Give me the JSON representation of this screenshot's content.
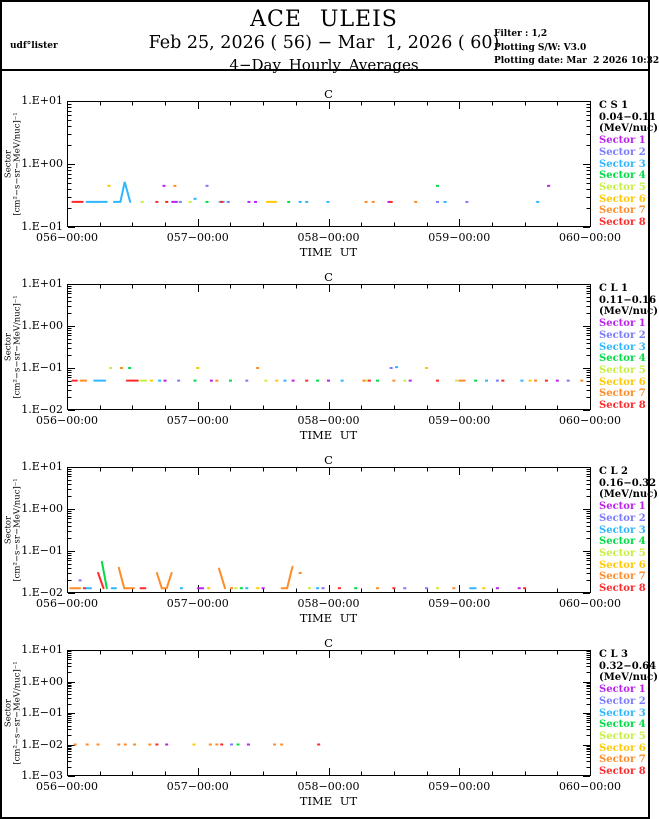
{
  "header": {
    "title": "ACE ULEIS",
    "date_range": "Feb 25, 2026 ( 56) − Mar  1, 2026 ( 60)",
    "subtitle": "4−Day Hourly Averages",
    "left_note": "udf°lister",
    "right_notes": [
      "Filter : 1,2",
      "Plotting S/W: V3.0",
      "Plotting date: Mar  2 2026 10:32"
    ]
  },
  "xaxis": {
    "tick_labels": [
      "056−00:00",
      "057−00:00",
      "058−00:00",
      "059−00:00",
      "060−00:00"
    ],
    "label": "TIME UT",
    "hours_range": [
      0,
      96
    ],
    "major_tick_hours": 24,
    "minor_tick_hours": 6
  },
  "yaxis_label_lines": [
    "Sector",
    "[cm²−s−sr−MeV/nuc]⁻¹"
  ],
  "sectors": [
    {
      "name": "Sector 1",
      "color": "#bb22ee"
    },
    {
      "name": "Sector 2",
      "color": "#7b7bff"
    },
    {
      "name": "Sector 3",
      "color": "#2eb6ff"
    },
    {
      "name": "Sector 4",
      "color": "#00dd44"
    },
    {
      "name": "Sector 5",
      "color": "#c8ee44"
    },
    {
      "name": "Sector 6",
      "color": "#ffc800"
    },
    {
      "name": "Sector 7",
      "color": "#ff8c28"
    },
    {
      "name": "Sector 8",
      "color": "#ff2a2a"
    }
  ],
  "chart_data": [
    {
      "type": "scatter",
      "panel_title": "C",
      "legend_lines": [
        "C S 1",
        "0.04−0.11",
        "(MeV/nuc)"
      ],
      "ylog_range": [
        -1,
        1
      ],
      "ytick_labels": [
        "1.E+01",
        "1.E+00",
        "1.E−01"
      ],
      "series": [
        {
          "sector": 1,
          "points": [
            [
              17.8,
              0.45
            ],
            [
              19.3,
              0.25
            ],
            [
              20.2,
              0.25
            ],
            [
              33.4,
              0.25
            ],
            [
              34.6,
              0.25
            ],
            [
              59.1,
              0.25
            ],
            [
              88.4,
              0.45
            ]
          ]
        },
        {
          "sector": 2,
          "points": [
            [
              20.8,
              0.25
            ],
            [
              25.7,
              0.45
            ],
            [
              29.6,
              0.25
            ],
            [
              68,
              0.25
            ],
            [
              73.4,
              0.25
            ]
          ]
        },
        {
          "sector": 3,
          "points": [
            [
              3.6,
              0.25
            ],
            [
              4.6,
              0.25
            ],
            [
              5.6,
              0.25
            ],
            [
              6.6,
              0.25
            ],
            [
              7.3,
              0.25
            ],
            [
              8.6,
              0.25
            ],
            [
              9.3,
              0.25
            ],
            [
              9.8,
              0.25
            ],
            [
              10.6,
              0.52
            ],
            [
              11.6,
              0.25
            ],
            [
              23.5,
              0.28
            ],
            [
              28,
              0.25
            ],
            [
              28.8,
              0.25
            ],
            [
              42.8,
              0.25
            ],
            [
              44,
              0.25
            ],
            [
              47.9,
              0.25
            ],
            [
              69.4,
              0.25
            ],
            [
              86.4,
              0.25
            ]
          ]
        },
        {
          "sector": 4,
          "points": [
            [
              25.7,
              0.25
            ],
            [
              40.7,
              0.25
            ],
            [
              68,
              0.45
            ]
          ]
        },
        {
          "sector": 5,
          "points": [
            [
              13.8,
              0.25
            ],
            [
              22.6,
              0.25
            ]
          ]
        },
        {
          "sector": 6,
          "points": [
            [
              7.7,
              0.45
            ],
            [
              36.7,
              0.25
            ],
            [
              37.6,
              0.25
            ],
            [
              38.4,
              0.25
            ]
          ]
        },
        {
          "sector": 7,
          "points": [
            [
              2,
              0.25
            ],
            [
              19.8,
              0.45
            ],
            [
              54.9,
              0.25
            ],
            [
              56.2,
              0.25
            ],
            [
              64,
              0.25
            ]
          ]
        },
        {
          "sector": 8,
          "points": [
            [
              1,
              0.25
            ],
            [
              1.9,
              0.25
            ],
            [
              2.9,
              0.25
            ],
            [
              16.5,
              0.25
            ],
            [
              18.3,
              0.25
            ],
            [
              28.4,
              0.25
            ],
            [
              59.5,
              0.25
            ]
          ]
        }
      ]
    },
    {
      "type": "scatter",
      "panel_title": "C",
      "legend_lines": [
        "C L 1",
        "0.11−0.16",
        "(MeV/nuc)"
      ],
      "ylog_range": [
        -2,
        1
      ],
      "ytick_labels": [
        "1.E+01",
        "1.E+00",
        "1.E−01",
        "1.E−02"
      ],
      "series": [
        {
          "sector": 1,
          "points": [
            [
              18,
              0.05
            ],
            [
              26.5,
              0.05
            ],
            [
              41.5,
              0.05
            ],
            [
              48,
              0.05
            ],
            [
              63,
              0.05
            ],
            [
              90,
              0.05
            ]
          ]
        },
        {
          "sector": 2,
          "points": [
            [
              20.5,
              0.05
            ],
            [
              33,
              0.05
            ],
            [
              59.5,
              0.1
            ],
            [
              79,
              0.05
            ],
            [
              92,
              0.05
            ]
          ]
        },
        {
          "sector": 3,
          "points": [
            [
              5,
              0.05
            ],
            [
              6,
              0.05
            ],
            [
              7,
              0.05
            ],
            [
              17,
              0.05
            ],
            [
              40,
              0.05
            ],
            [
              50.5,
              0.05
            ],
            [
              60.5,
              0.105
            ],
            [
              77,
              0.05
            ],
            [
              83.5,
              0.05
            ]
          ]
        },
        {
          "sector": 4,
          "points": [
            [
              11.5,
              0.1
            ],
            [
              23.5,
              0.05
            ],
            [
              30,
              0.05
            ],
            [
              46,
              0.05
            ],
            [
              57,
              0.05
            ],
            [
              75,
              0.05
            ]
          ]
        },
        {
          "sector": 5,
          "points": [
            [
              8,
              0.1
            ],
            [
              13.5,
              0.05
            ],
            [
              14.5,
              0.05
            ],
            [
              36.5,
              0.05
            ],
            [
              55,
              0.05
            ],
            [
              62,
              0.05
            ],
            [
              71.5,
              0.05
            ]
          ]
        },
        {
          "sector": 6,
          "points": [
            [
              15.5,
              0.05
            ],
            [
              24,
              0.1
            ],
            [
              38.5,
              0.05
            ],
            [
              66,
              0.1
            ],
            [
              85,
              0.05
            ]
          ]
        },
        {
          "sector": 7,
          "points": [
            [
              2.5,
              0.05
            ],
            [
              3.5,
              0.05
            ],
            [
              10,
              0.1
            ],
            [
              27.5,
              0.05
            ],
            [
              35,
              0.1
            ],
            [
              54.5,
              0.05
            ],
            [
              60,
              0.05
            ],
            [
              72,
              0.05
            ],
            [
              73,
              0.05
            ],
            [
              86,
              0.05
            ],
            [
              94.5,
              0.05
            ]
          ]
        },
        {
          "sector": 8,
          "points": [
            [
              1,
              0.05
            ],
            [
              1.8,
              0.05
            ],
            [
              11,
              0.05
            ],
            [
              12,
              0.05
            ],
            [
              13,
              0.05
            ],
            [
              44,
              0.05
            ],
            [
              55.5,
              0.05
            ],
            [
              68,
              0.05
            ],
            [
              80,
              0.05
            ],
            [
              88,
              0.05
            ]
          ]
        }
      ]
    },
    {
      "type": "scatter",
      "panel_title": "C",
      "legend_lines": [
        "C L 2",
        "0.16−0.32",
        "(MeV/nuc)"
      ],
      "ylog_range": [
        -2,
        1
      ],
      "ytick_labels": [
        "1.E+01",
        "1.E+00",
        "1.E−01",
        "1.E−02"
      ],
      "series": [
        {
          "sector": 1,
          "points": [
            [
              24,
              0.013
            ],
            [
              25,
              0.013
            ],
            [
              36,
              0.013
            ],
            [
              79,
              0.013
            ],
            [
              83,
              0.013
            ]
          ]
        },
        {
          "sector": 2,
          "points": [
            [
              2.4,
              0.02
            ],
            [
              47,
              0.013
            ],
            [
              62,
              0.013
            ],
            [
              66,
              0.013
            ]
          ]
        },
        {
          "sector": 3,
          "points": [
            [
              3.5,
              0.013
            ],
            [
              4.4,
              0.013
            ],
            [
              8.2,
              0.013
            ],
            [
              9,
              0.013
            ],
            [
              21,
              0.013
            ],
            [
              33,
              0.013
            ],
            [
              46,
              0.013
            ],
            [
              74,
              0.013
            ],
            [
              75,
              0.013
            ]
          ]
        },
        {
          "sector": 4,
          "points": [
            [
              6.4,
              0.055
            ],
            [
              7.3,
              0.013
            ],
            [
              32,
              0.013
            ],
            [
              53,
              0.013
            ]
          ]
        },
        {
          "sector": 5,
          "points": [
            [
              31,
              0.013
            ],
            [
              44.5,
              0.013
            ],
            [
              68,
              0.013
            ]
          ]
        },
        {
          "sector": 6,
          "points": [
            [
              26,
              0.013
            ],
            [
              35,
              0.013
            ],
            [
              76.5,
              0.013
            ]
          ]
        },
        {
          "sector": 7,
          "points": [
            [
              0.6,
              0.013
            ],
            [
              1.5,
              0.013
            ],
            [
              2.4,
              0.013
            ],
            [
              9.5,
              0.04
            ],
            [
              10.5,
              0.013
            ],
            [
              11.4,
              0.013
            ],
            [
              12.3,
              0.013
            ],
            [
              16.5,
              0.03
            ],
            [
              17.4,
              0.013
            ],
            [
              18.3,
              0.013
            ],
            [
              19.2,
              0.03
            ],
            [
              27.9,
              0.038
            ],
            [
              29,
              0.013
            ],
            [
              30.2,
              0.013
            ],
            [
              39.4,
              0.013
            ],
            [
              40.4,
              0.013
            ],
            [
              41.4,
              0.042
            ],
            [
              42.8,
              0.03
            ],
            [
              57,
              0.013
            ],
            [
              71,
              0.013
            ]
          ]
        },
        {
          "sector": 8,
          "points": [
            [
              3.2,
              0.013
            ],
            [
              5.7,
              0.03
            ],
            [
              6.7,
              0.013
            ],
            [
              13.5,
              0.013
            ],
            [
              14.4,
              0.013
            ],
            [
              50,
              0.013
            ],
            [
              60,
              0.013
            ],
            [
              84,
              0.013
            ]
          ]
        }
      ]
    },
    {
      "type": "scatter",
      "panel_title": "C",
      "legend_lines": [
        "C L 3",
        "0.32−0.64",
        "(MeV/nuc)"
      ],
      "ylog_range": [
        -3,
        1
      ],
      "ytick_labels": [
        "1.E+01",
        "1.E+00",
        "1.E−01",
        "1.E−02",
        "1.E−03"
      ],
      "series": [
        {
          "sector": 1,
          "points": [
            [
              18.3,
              0.01
            ],
            [
              33.3,
              0.01
            ]
          ]
        },
        {
          "sector": 2,
          "points": [
            [
              30.2,
              0.01
            ]
          ]
        },
        {
          "sector": 4,
          "points": [
            [
              31.4,
              0.01
            ]
          ]
        },
        {
          "sector": 6,
          "points": [
            [
              23.3,
              0.01
            ]
          ]
        },
        {
          "sector": 7,
          "points": [
            [
              1.5,
              0.01
            ],
            [
              3.7,
              0.01
            ],
            [
              5.7,
              0.01
            ],
            [
              9.5,
              0.01
            ],
            [
              10.7,
              0.01
            ],
            [
              12.4,
              0.01
            ],
            [
              15.2,
              0.01
            ],
            [
              26.3,
              0.01
            ],
            [
              27.5,
              0.01
            ],
            [
              38.1,
              0.01
            ],
            [
              39.4,
              0.01
            ]
          ]
        },
        {
          "sector": 8,
          "points": [
            [
              16.5,
              0.01
            ],
            [
              28.4,
              0.01
            ],
            [
              46.2,
              0.01
            ]
          ]
        }
      ]
    }
  ]
}
